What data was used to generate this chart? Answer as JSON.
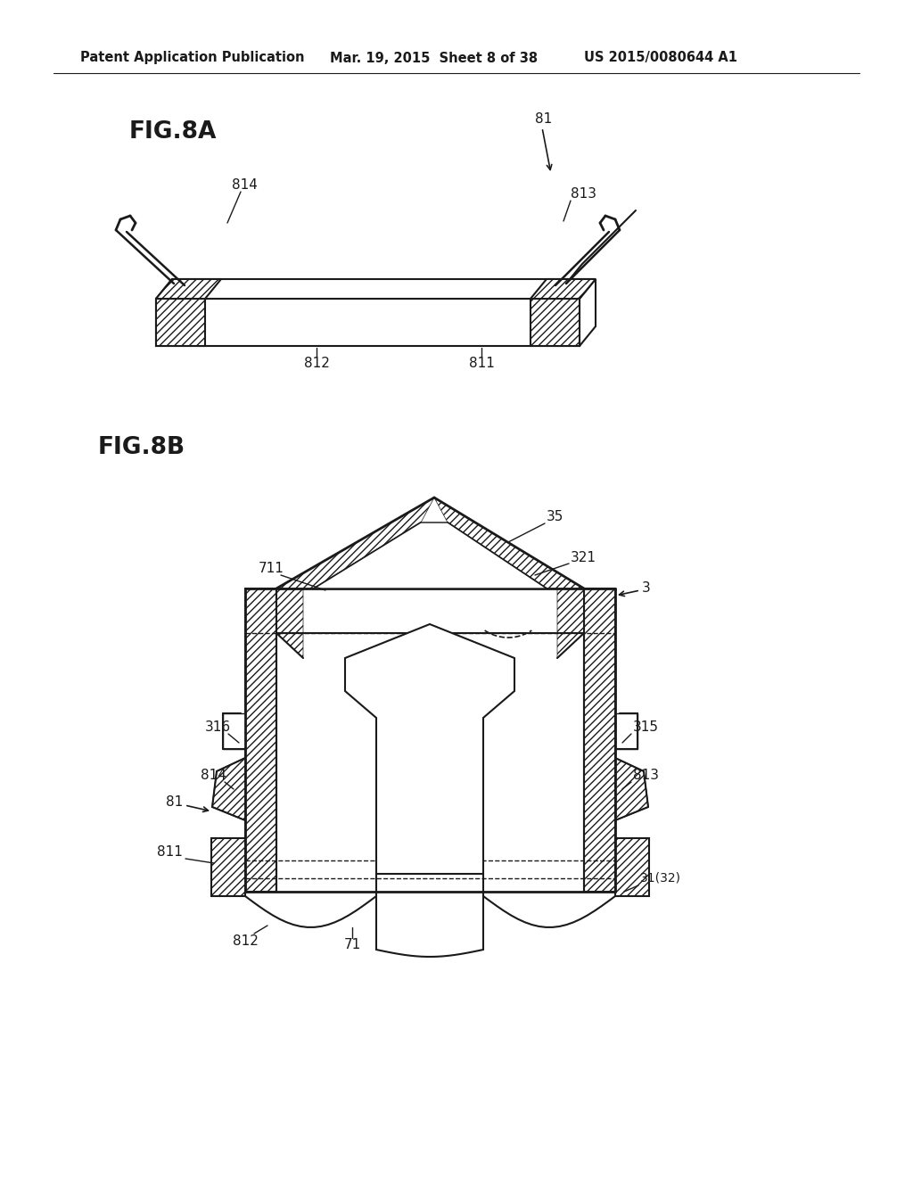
{
  "bg_color": "#ffffff",
  "line_color": "#1a1a1a",
  "header_text": "Patent Application Publication",
  "header_date": "Mar. 19, 2015  Sheet 8 of 38",
  "header_patent": "US 2015/0080644 A1",
  "fig8a_label": "FIG.8A",
  "fig8b_label": "FIG.8B",
  "fig_width": 10.24,
  "fig_height": 13.2,
  "dpi": 100
}
